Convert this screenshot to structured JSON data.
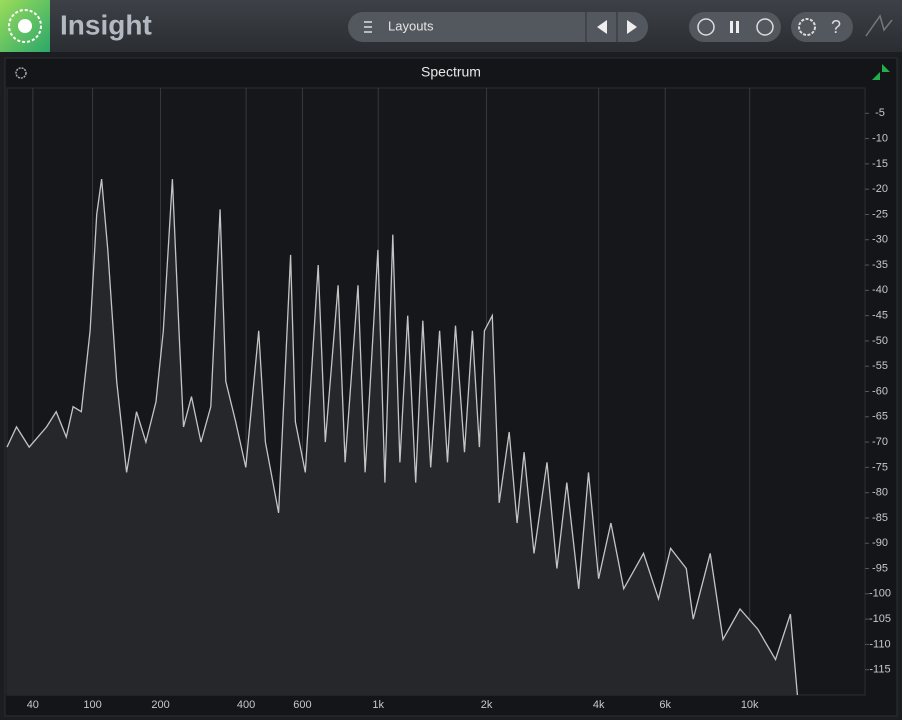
{
  "app": {
    "title": "Insight",
    "layouts": "Layouts"
  },
  "chart_data": {
    "type": "line",
    "title": "Spectrum",
    "x": [
      20,
      27,
      37,
      52,
      61,
      71,
      78,
      87,
      97,
      105,
      111,
      119,
      131,
      145,
      160,
      175,
      192,
      205,
      222,
      235,
      244,
      261,
      282,
      305,
      328,
      343,
      370,
      399,
      439,
      461,
      507,
      552,
      571,
      612,
      669,
      702,
      766,
      803,
      875,
      917,
      998,
      1045,
      1100,
      1152,
      1212,
      1276,
      1335,
      1405,
      1487,
      1563,
      1645,
      1741,
      1830,
      1912,
      1973,
      2073,
      2165,
      2304,
      2420,
      2528,
      2687,
      2912,
      3096,
      3290,
      3540,
      3760,
      4000,
      4310,
      4660,
      5260,
      5760,
      6200,
      6820,
      7110,
      7880,
      8510,
      9430,
      10500,
      11680,
      12780,
      13330
    ],
    "values": [
      -71,
      -67,
      -71,
      -67,
      -64,
      -69,
      -63,
      -64,
      -48,
      -25,
      -18,
      -32,
      -58,
      -76,
      -64,
      -70,
      -62,
      -48,
      -18,
      -48,
      -67,
      -61,
      -70,
      -63,
      -24,
      -58,
      -66,
      -75,
      -48,
      -70,
      -84,
      -33,
      -66,
      -76,
      -35,
      -70,
      -39,
      -74,
      -39,
      -76,
      -32,
      -78,
      -29,
      -74,
      -45,
      -78,
      -46,
      -75,
      -48,
      -74,
      -47,
      -72,
      -48,
      -71,
      -48,
      -45,
      -82,
      -68,
      -86,
      -72,
      -92,
      -74,
      -95,
      -78,
      -99,
      -76,
      -97,
      -86,
      -99,
      -92,
      -101,
      -91,
      -95,
      -105,
      -92,
      -109,
      -103,
      -107,
      -113,
      -104,
      -120
    ],
    "xlim": [
      20,
      20000
    ],
    "ylim": [
      -120,
      0
    ],
    "xticks": [
      40,
      100,
      200,
      400,
      600,
      {
        "value": 1000,
        "label": "1k"
      },
      {
        "value": 2000,
        "label": "2k"
      },
      {
        "value": 4000,
        "label": "4k"
      },
      {
        "value": 6000,
        "label": "6k"
      },
      {
        "value": 10000,
        "label": "10k"
      }
    ],
    "yticks": [
      -5,
      -10,
      -15,
      -20,
      -25,
      -30,
      -35,
      -40,
      -45,
      -50,
      -55,
      -60,
      -65,
      -70,
      -75,
      -80,
      -85,
      -90,
      -95,
      -100,
      -105,
      -110,
      -115
    ],
    "xscale": "log",
    "grid": true,
    "color": "#c4c4c4"
  }
}
